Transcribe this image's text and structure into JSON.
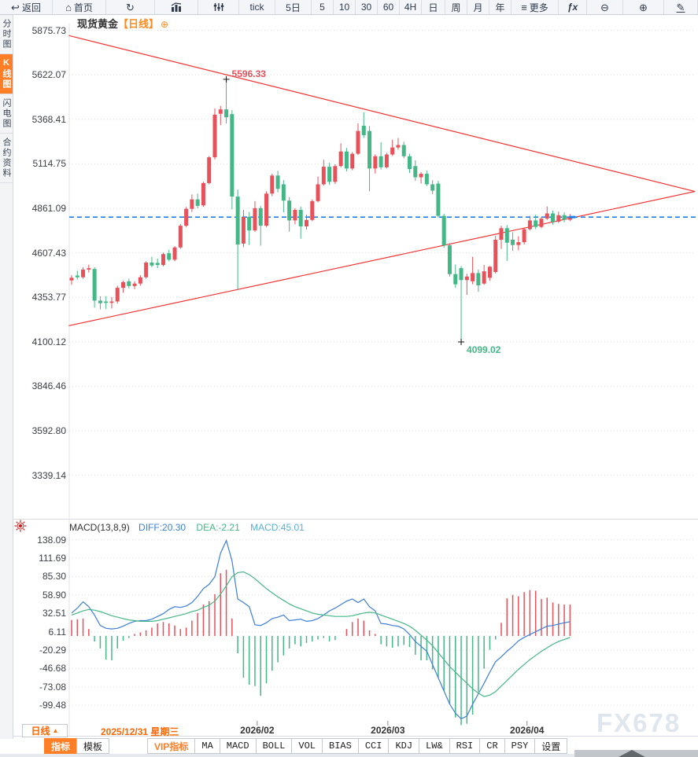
{
  "chart": {
    "symbol": "现货黄金",
    "timeframe_label": "【日线】",
    "add_icon": "⊕"
  },
  "topbar": {
    "items": [
      {
        "name": "back-button",
        "icon": "back-icon",
        "label": "返回"
      },
      {
        "name": "home-button",
        "icon": "home-icon",
        "label": "首页"
      },
      {
        "name": "refresh-button",
        "icon": "refresh-icon",
        "label": ""
      },
      {
        "name": "chart-type-button",
        "icon": "bar-chart-icon",
        "label": ""
      },
      {
        "name": "tick-style-button",
        "icon": "sliders-icon",
        "label": ""
      },
      {
        "name": "interval-tick-button",
        "label": "tick"
      },
      {
        "name": "interval-5d-button",
        "label": "5日"
      },
      {
        "name": "interval-5-button",
        "label": "5"
      },
      {
        "name": "interval-10-button",
        "label": "10"
      },
      {
        "name": "interval-30-button",
        "label": "30"
      },
      {
        "name": "interval-60-button",
        "label": "60"
      },
      {
        "name": "interval-4h-button",
        "label": "4H"
      },
      {
        "name": "interval-day-button",
        "label": "日"
      },
      {
        "name": "interval-week-button",
        "label": "周"
      },
      {
        "name": "interval-month-button",
        "label": "月"
      },
      {
        "name": "interval-year-button",
        "label": "年"
      },
      {
        "name": "more-button",
        "icon": "menu-icon",
        "label": "更多"
      },
      {
        "name": "fx-indicators-button",
        "label": "ƒx"
      },
      {
        "name": "zoom-out-button",
        "icon": "zoom-out-icon",
        "label": ""
      },
      {
        "name": "zoom-in-button",
        "icon": "zoom-in-icon",
        "label": ""
      },
      {
        "name": "draw-button",
        "icon": "pencil-icon",
        "label": ""
      }
    ]
  },
  "sidebar": {
    "items": [
      {
        "label": "分时图",
        "active": false
      },
      {
        "label": "K线图",
        "active": true
      },
      {
        "label": "闪电图",
        "active": false
      },
      {
        "label": "合约资料",
        "active": false
      }
    ]
  },
  "macd_header": {
    "title": "MACD(13,8,9)",
    "diff": "DIFF:20.30",
    "dea": "DEA:-2.21",
    "macd": "MACD:45.01"
  },
  "bottom": {
    "period": "日线",
    "period_arrow": "▲",
    "date": "2025/12/31 星期三",
    "watermark": "FX678",
    "tabs": [
      {
        "label": "指标",
        "active": true
      },
      {
        "label": "模板"
      },
      {
        "label": "VIP指标",
        "vip": true,
        "gap": true
      },
      {
        "label": "MA"
      },
      {
        "label": "MACD"
      },
      {
        "label": "BOLL"
      },
      {
        "label": "VOL"
      },
      {
        "label": "BIAS"
      },
      {
        "label": "CCI"
      },
      {
        "label": "KDJ"
      },
      {
        "label": "LW&"
      },
      {
        "label": "RSI"
      },
      {
        "label": "CR"
      },
      {
        "label": "PSY"
      },
      {
        "label": "设置"
      }
    ]
  },
  "colors": {
    "up": "#e8515a",
    "down": "#45b787",
    "trendline": "#f53030",
    "reference": "#1e80e8",
    "diff_line": "#3d7fd9",
    "dea_line": "#45b787",
    "accent": "#ff7e26",
    "grid": "#dcdce4"
  },
  "chart_data": [
    {
      "type": "candlestick",
      "title": "现货黄金 日线",
      "price_axis_labels": [
        "5875.73",
        "5622.07",
        "5368.41",
        "5114.75",
        "4861.09",
        "4607.43",
        "4353.77",
        "4100.12",
        "3846.46",
        "3592.80",
        "3339.14"
      ],
      "x_axis_labels": [
        {
          "label": "2026/02",
          "index": 32.4
        },
        {
          "label": "2026/03",
          "index": 55.2
        },
        {
          "label": "2026/04",
          "index": 79.5
        }
      ],
      "reference_line": {
        "price": 4811.1,
        "style": "dashed"
      },
      "trendlines": [
        {
          "name": "descending",
          "from_index": -0.5,
          "from_price": 5846,
          "to_index": 108.8,
          "to_price": 4957
        },
        {
          "name": "ascending",
          "from_index": -0.5,
          "from_price": 4192,
          "to_index": 108.8,
          "to_price": 4957
        }
      ],
      "annotations": [
        {
          "text": "5596.33",
          "index": 27,
          "price": 5596.33,
          "type": "high"
        },
        {
          "text": "4099.02",
          "index": 68,
          "price": 4099.02,
          "type": "low"
        }
      ],
      "candles": [
        [
          4450,
          4480,
          4425,
          4465
        ],
        [
          4478,
          4505,
          4455,
          4468
        ],
        [
          4468,
          4525,
          4460,
          4512
        ],
        [
          4512,
          4540,
          4495,
          4520
        ],
        [
          4515,
          4525,
          4295,
          4335
        ],
        [
          4335,
          4360,
          4285,
          4320
        ],
        [
          4330,
          4360,
          4288,
          4322
        ],
        [
          4322,
          4355,
          4290,
          4330
        ],
        [
          4330,
          4420,
          4318,
          4408
        ],
        [
          4408,
          4448,
          4380,
          4440
        ],
        [
          4445,
          4460,
          4405,
          4418
        ],
        [
          4418,
          4445,
          4400,
          4432
        ],
        [
          4432,
          4480,
          4420,
          4468
        ],
        [
          4468,
          4560,
          4460,
          4552
        ],
        [
          4552,
          4585,
          4525,
          4535
        ],
        [
          4550,
          4575,
          4520,
          4538
        ],
        [
          4538,
          4608,
          4530,
          4600
        ],
        [
          4605,
          4625,
          4558,
          4568
        ],
        [
          4568,
          4645,
          4560,
          4638
        ],
        [
          4638,
          4772,
          4630,
          4762
        ],
        [
          4762,
          4868,
          4755,
          4858
        ],
        [
          4858,
          4940,
          4840,
          4912
        ],
        [
          4912,
          4945,
          4862,
          4875
        ],
        [
          4878,
          5012,
          4870,
          5005
        ],
        [
          5005,
          5160,
          4998,
          5152
        ],
        [
          5152,
          5430,
          5140,
          5395
        ],
        [
          5400,
          5445,
          5335,
          5425
        ],
        [
          5425,
          5596.33,
          5345,
          5380
        ],
        [
          5398,
          5420,
          4855,
          4928
        ],
        [
          4928,
          4968,
          4398,
          4655
        ],
        [
          4660,
          4852,
          4640,
          4812
        ],
        [
          4812,
          4840,
          4652,
          4735
        ],
        [
          4735,
          4902,
          4728,
          4862
        ],
        [
          4862,
          4875,
          4648,
          4762
        ],
        [
          4762,
          4958,
          4755,
          4945
        ],
        [
          4945,
          5058,
          4930,
          5048
        ],
        [
          5048,
          5075,
          4952,
          4972
        ],
        [
          4998,
          5022,
          4838,
          4905
        ],
        [
          4905,
          4925,
          4728,
          4792
        ],
        [
          4792,
          4862,
          4770,
          4852
        ],
        [
          4852,
          4870,
          4688,
          4758
        ],
        [
          4758,
          4825,
          4740,
          4795
        ],
        [
          4795,
          4912,
          4788,
          4902
        ],
        [
          4902,
          5042,
          4895,
          4998
        ],
        [
          4998,
          5138,
          4990,
          5098
        ],
        [
          5098,
          5120,
          4995,
          5012
        ],
        [
          5012,
          5112,
          5000,
          5102
        ],
        [
          5102,
          5232,
          5095,
          5185
        ],
        [
          5185,
          5205,
          5072,
          5088
        ],
        [
          5088,
          5182,
          5078,
          5172
        ],
        [
          5172,
          5345,
          5165,
          5302
        ],
        [
          5332,
          5408,
          5262,
          5278
        ],
        [
          5302,
          5330,
          4958,
          5088
        ],
        [
          5088,
          5168,
          5060,
          5158
        ],
        [
          5158,
          5238,
          5082,
          5095
        ],
        [
          5095,
          5178,
          5088,
          5168
        ],
        [
          5168,
          5252,
          5160,
          5208
        ],
        [
          5208,
          5262,
          5195,
          5222
        ],
        [
          5222,
          5240,
          5148,
          5158
        ],
        [
          5158,
          5172,
          5062,
          5085
        ],
        [
          5102,
          5135,
          5018,
          5038
        ],
        [
          5038,
          5068,
          5002,
          5058
        ],
        [
          5058,
          5075,
          4988,
          4998
        ],
        [
          4998,
          5022,
          4942,
          4962
        ],
        [
          5002,
          5018,
          4808,
          4818
        ],
        [
          4818,
          4830,
          4638,
          4650
        ],
        [
          4650,
          4662,
          4472,
          4486
        ],
        [
          4486,
          4540,
          4408,
          4428
        ],
        [
          4520,
          4532,
          4099.02,
          4452
        ],
        [
          4452,
          4488,
          4368,
          4472
        ],
        [
          4445,
          4585,
          4428,
          4492
        ],
        [
          4492,
          4512,
          4385,
          4422
        ],
        [
          4432,
          4538,
          4425,
          4502
        ],
        [
          4465,
          4532,
          4448,
          4528
        ],
        [
          4498,
          4705,
          4490,
          4682
        ],
        [
          4682,
          4762,
          4630,
          4748
        ],
        [
          4748,
          4765,
          4562,
          4665
        ],
        [
          4682,
          4725,
          4618,
          4652
        ],
        [
          4652,
          4702,
          4622,
          4668
        ],
        [
          4668,
          4748,
          4655,
          4742
        ],
        [
          4742,
          4818,
          4735,
          4792
        ],
        [
          4792,
          4825,
          4742,
          4755
        ],
        [
          4755,
          4812,
          4748,
          4802
        ],
        [
          4802,
          4872,
          4795,
          4832
        ],
        [
          4832,
          4848,
          4768,
          4785
        ],
        [
          4785,
          4842,
          4778,
          4822
        ],
        [
          4822,
          4838,
          4782,
          4796
        ],
        [
          4796,
          4828,
          4788,
          4811
        ]
      ]
    },
    {
      "type": "macd",
      "params": "MACD(13,8,9)",
      "diff_value": 20.3,
      "dea_value": -2.21,
      "macd_value": 45.01,
      "axis_labels": [
        "138.09",
        "111.69",
        "85.30",
        "58.90",
        "32.51",
        "6.11",
        "-20.29",
        "-46.68",
        "-73.08",
        "-99.48"
      ],
      "diff": [
        33,
        40,
        49,
        42,
        30,
        15,
        11,
        10,
        11,
        14,
        18,
        21,
        22,
        22,
        24,
        28,
        32,
        38,
        42,
        41,
        43,
        48,
        57,
        68,
        74,
        85,
        119,
        137,
        108,
        53,
        48,
        42,
        16,
        15,
        19,
        25,
        27,
        30,
        22,
        23,
        24,
        21,
        22,
        25,
        30,
        36,
        40,
        45,
        50,
        53,
        48,
        53,
        42,
        36,
        18,
        17,
        15,
        14,
        10,
        2,
        -8,
        -15,
        -22,
        -41,
        -60,
        -79,
        -98,
        -111,
        -119,
        -115,
        -98,
        -83,
        -68,
        -52,
        -37,
        -30,
        -22,
        -15,
        -7,
        -2,
        2,
        6,
        10,
        14,
        15,
        17,
        19,
        20.3
      ],
      "dea": [
        30,
        33,
        36,
        38,
        37,
        35,
        32,
        29,
        27,
        25,
        23,
        22,
        21,
        21,
        21,
        22,
        24,
        26,
        28,
        30,
        32,
        35,
        37,
        41,
        44,
        50,
        60,
        72,
        85,
        91,
        92,
        88,
        82,
        75,
        68,
        62,
        56,
        51,
        46,
        42,
        39,
        36,
        33,
        31,
        30,
        29,
        28,
        28,
        28,
        29,
        31,
        33,
        34,
        33,
        30,
        27,
        24,
        21,
        18,
        14,
        8,
        1,
        -6,
        -14,
        -24,
        -34,
        -44,
        -52,
        -60,
        -68,
        -76,
        -82,
        -87,
        -85,
        -80,
        -72,
        -64,
        -56,
        -48,
        -41,
        -34,
        -28,
        -22,
        -17,
        -12,
        -8,
        -5,
        -2.21
      ],
      "hist": [
        23,
        24,
        25,
        10,
        -8,
        -18,
        -34,
        -35,
        -18,
        -7,
        -3,
        3,
        5,
        8,
        12,
        18,
        20,
        18,
        15,
        10,
        12,
        22,
        33,
        45,
        50,
        60,
        90,
        95,
        25,
        -25,
        -60,
        -70,
        -72,
        -86,
        -68,
        -50,
        -38,
        -28,
        -18,
        -12,
        -15,
        -10,
        -8,
        -5,
        -3,
        -8,
        -6,
        0,
        10,
        20,
        25,
        22,
        8,
        3,
        -12,
        -15,
        -17,
        -15,
        -13,
        -16,
        -27,
        -35,
        -35,
        -48,
        -60,
        -79,
        -98,
        -117,
        -128,
        -126,
        -113,
        -80,
        -47,
        -20,
        -5,
        19,
        54,
        59,
        57,
        63,
        66,
        65,
        53,
        55,
        48,
        46,
        45,
        45.01
      ]
    }
  ]
}
